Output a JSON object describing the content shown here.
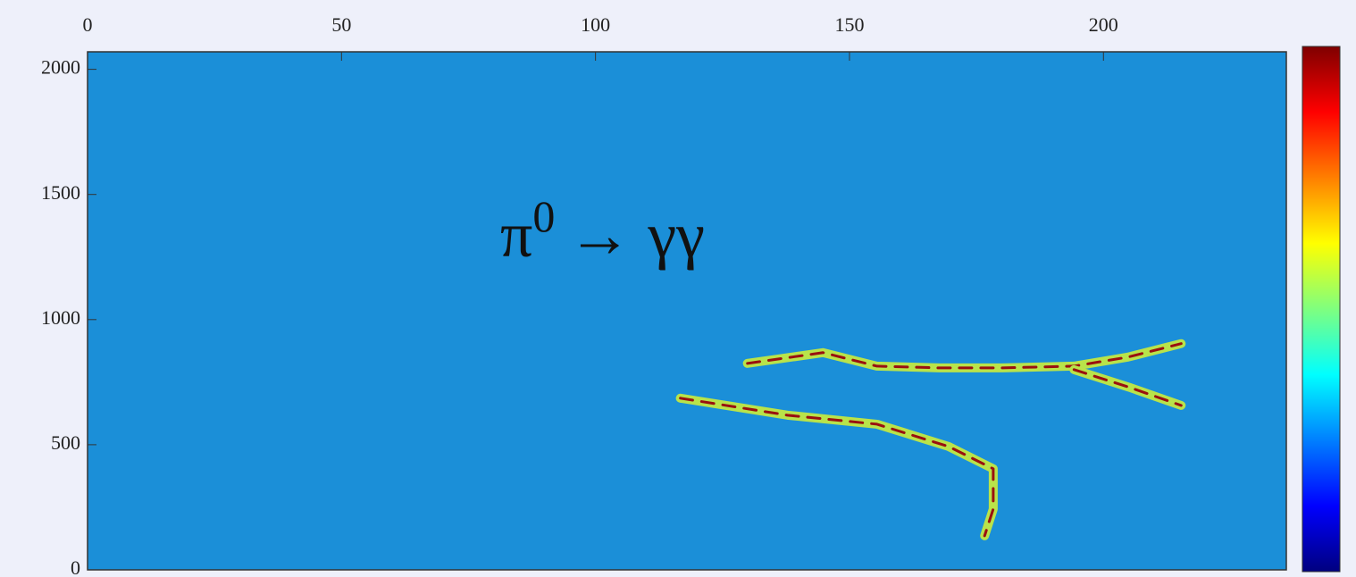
{
  "chart_data": {
    "type": "heatmap",
    "background_color": "#1b8fd8",
    "annotation": {
      "base": "π",
      "superscript": "0",
      "rest": "→ γγ"
    },
    "xlim": [
      0,
      236
    ],
    "ylim": [
      0,
      2070
    ],
    "xticks": [
      0,
      50,
      100,
      150,
      200
    ],
    "yticks": [
      0,
      500,
      1000,
      1500,
      2000
    ],
    "colorbar": [
      "#00007f",
      "#0000ff",
      "#007fff",
      "#00ffff",
      "#7fff7f",
      "#ffff00",
      "#ff7f00",
      "#ff0000",
      "#7f0000"
    ],
    "series": [
      {
        "color": "#b9e34a",
        "core_color": "#9a1010",
        "x": [
          129.9,
          144.8,
          155.4,
          167.7,
          180.1,
          194.2,
          204.8,
          215.3
        ],
        "values": [
          825,
          868,
          814,
          807,
          807,
          814,
          850,
          904
        ]
      },
      {
        "color": "#b9e34a",
        "core_color": "#9a1010",
        "x": [
          116.7,
          137.8,
          155.4,
          169.5,
          178.3,
          178.3,
          176.6
        ],
        "values": [
          686,
          618,
          582,
          493,
          404,
          243,
          136
        ]
      },
      {
        "color": "#b9e34a",
        "core_color": "#9a1010",
        "x": [
          194.2,
          205.0,
          215.3
        ],
        "values": [
          800,
          730,
          657
        ]
      }
    ]
  }
}
